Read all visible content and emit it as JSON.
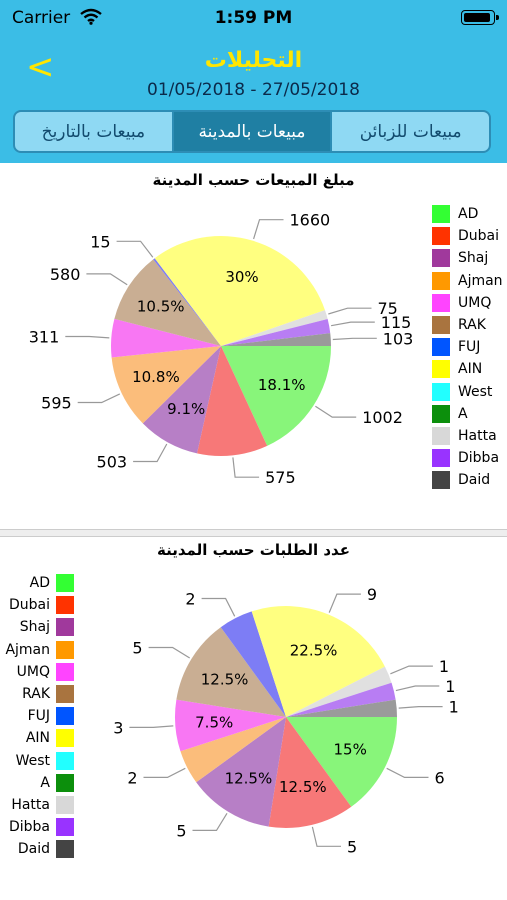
{
  "status": {
    "carrier": "Carrier",
    "time": "1:59 PM",
    "battery_level": 0.95
  },
  "header": {
    "back_icon": "chevron-left-icon",
    "back_symbol": "<",
    "title": "التحليلات",
    "date_range": "01/05/2018 - 27/05/2018"
  },
  "tabs": [
    {
      "label": "مبيعات بالتاريخ",
      "active": false
    },
    {
      "label": "مبيعات بالمدينة",
      "active": true
    },
    {
      "label": "مبيعات للزبائن",
      "active": false
    }
  ],
  "legend_colors": [
    "#33ff33",
    "#ff3300",
    "#a0399c",
    "#ff9900",
    "#ff44ff",
    "#a9743f",
    "#0055ff",
    "#ffff00",
    "#22ffff",
    "#0c8f0c",
    "#d8d8d8",
    "#9933ff",
    "#444444"
  ],
  "chart_data": [
    {
      "type": "pie",
      "title": "مبلغ المبيعات حسب المدينة",
      "legend_position": "right",
      "categories": [
        "AD",
        "Dubai",
        "Shaj",
        "Ajman",
        "UMQ",
        "RAK",
        "FUJ",
        "AIN",
        "West",
        "A",
        "Hatta",
        "Dibba",
        "Daid"
      ],
      "values": [
        1002,
        575,
        503,
        595,
        311,
        580,
        15,
        1660,
        0,
        0,
        75,
        115,
        103
      ],
      "value_labels": [
        "1002",
        "575",
        "503",
        "595",
        "311",
        "580",
        "15",
        "1660",
        "",
        "",
        "75",
        "115",
        "103"
      ],
      "percent_labels": [
        "18.1%",
        "",
        "9.1%",
        "10.8%",
        "",
        "10.5%",
        "",
        "30%",
        "",
        "",
        "",
        "",
        ""
      ]
    },
    {
      "type": "pie",
      "title": "عدد الطلبات حسب المدينة",
      "legend_position": "left",
      "categories": [
        "AD",
        "Dubai",
        "Shaj",
        "Ajman",
        "UMQ",
        "RAK",
        "FUJ",
        "AIN",
        "West",
        "A",
        "Hatta",
        "Dibba",
        "Daid"
      ],
      "values": [
        6,
        5,
        5,
        2,
        3,
        5,
        2,
        9,
        0,
        0,
        1,
        1,
        1
      ],
      "value_labels": [
        "6",
        "5",
        "5",
        "2",
        "3",
        "5",
        "2",
        "9",
        "",
        "",
        "1",
        "1",
        "1"
      ],
      "percent_labels": [
        "15%",
        "12.5%",
        "12.5%",
        "",
        "7.5%",
        "12.5%",
        "",
        "22.5%",
        "",
        "",
        "",
        "",
        ""
      ]
    }
  ]
}
